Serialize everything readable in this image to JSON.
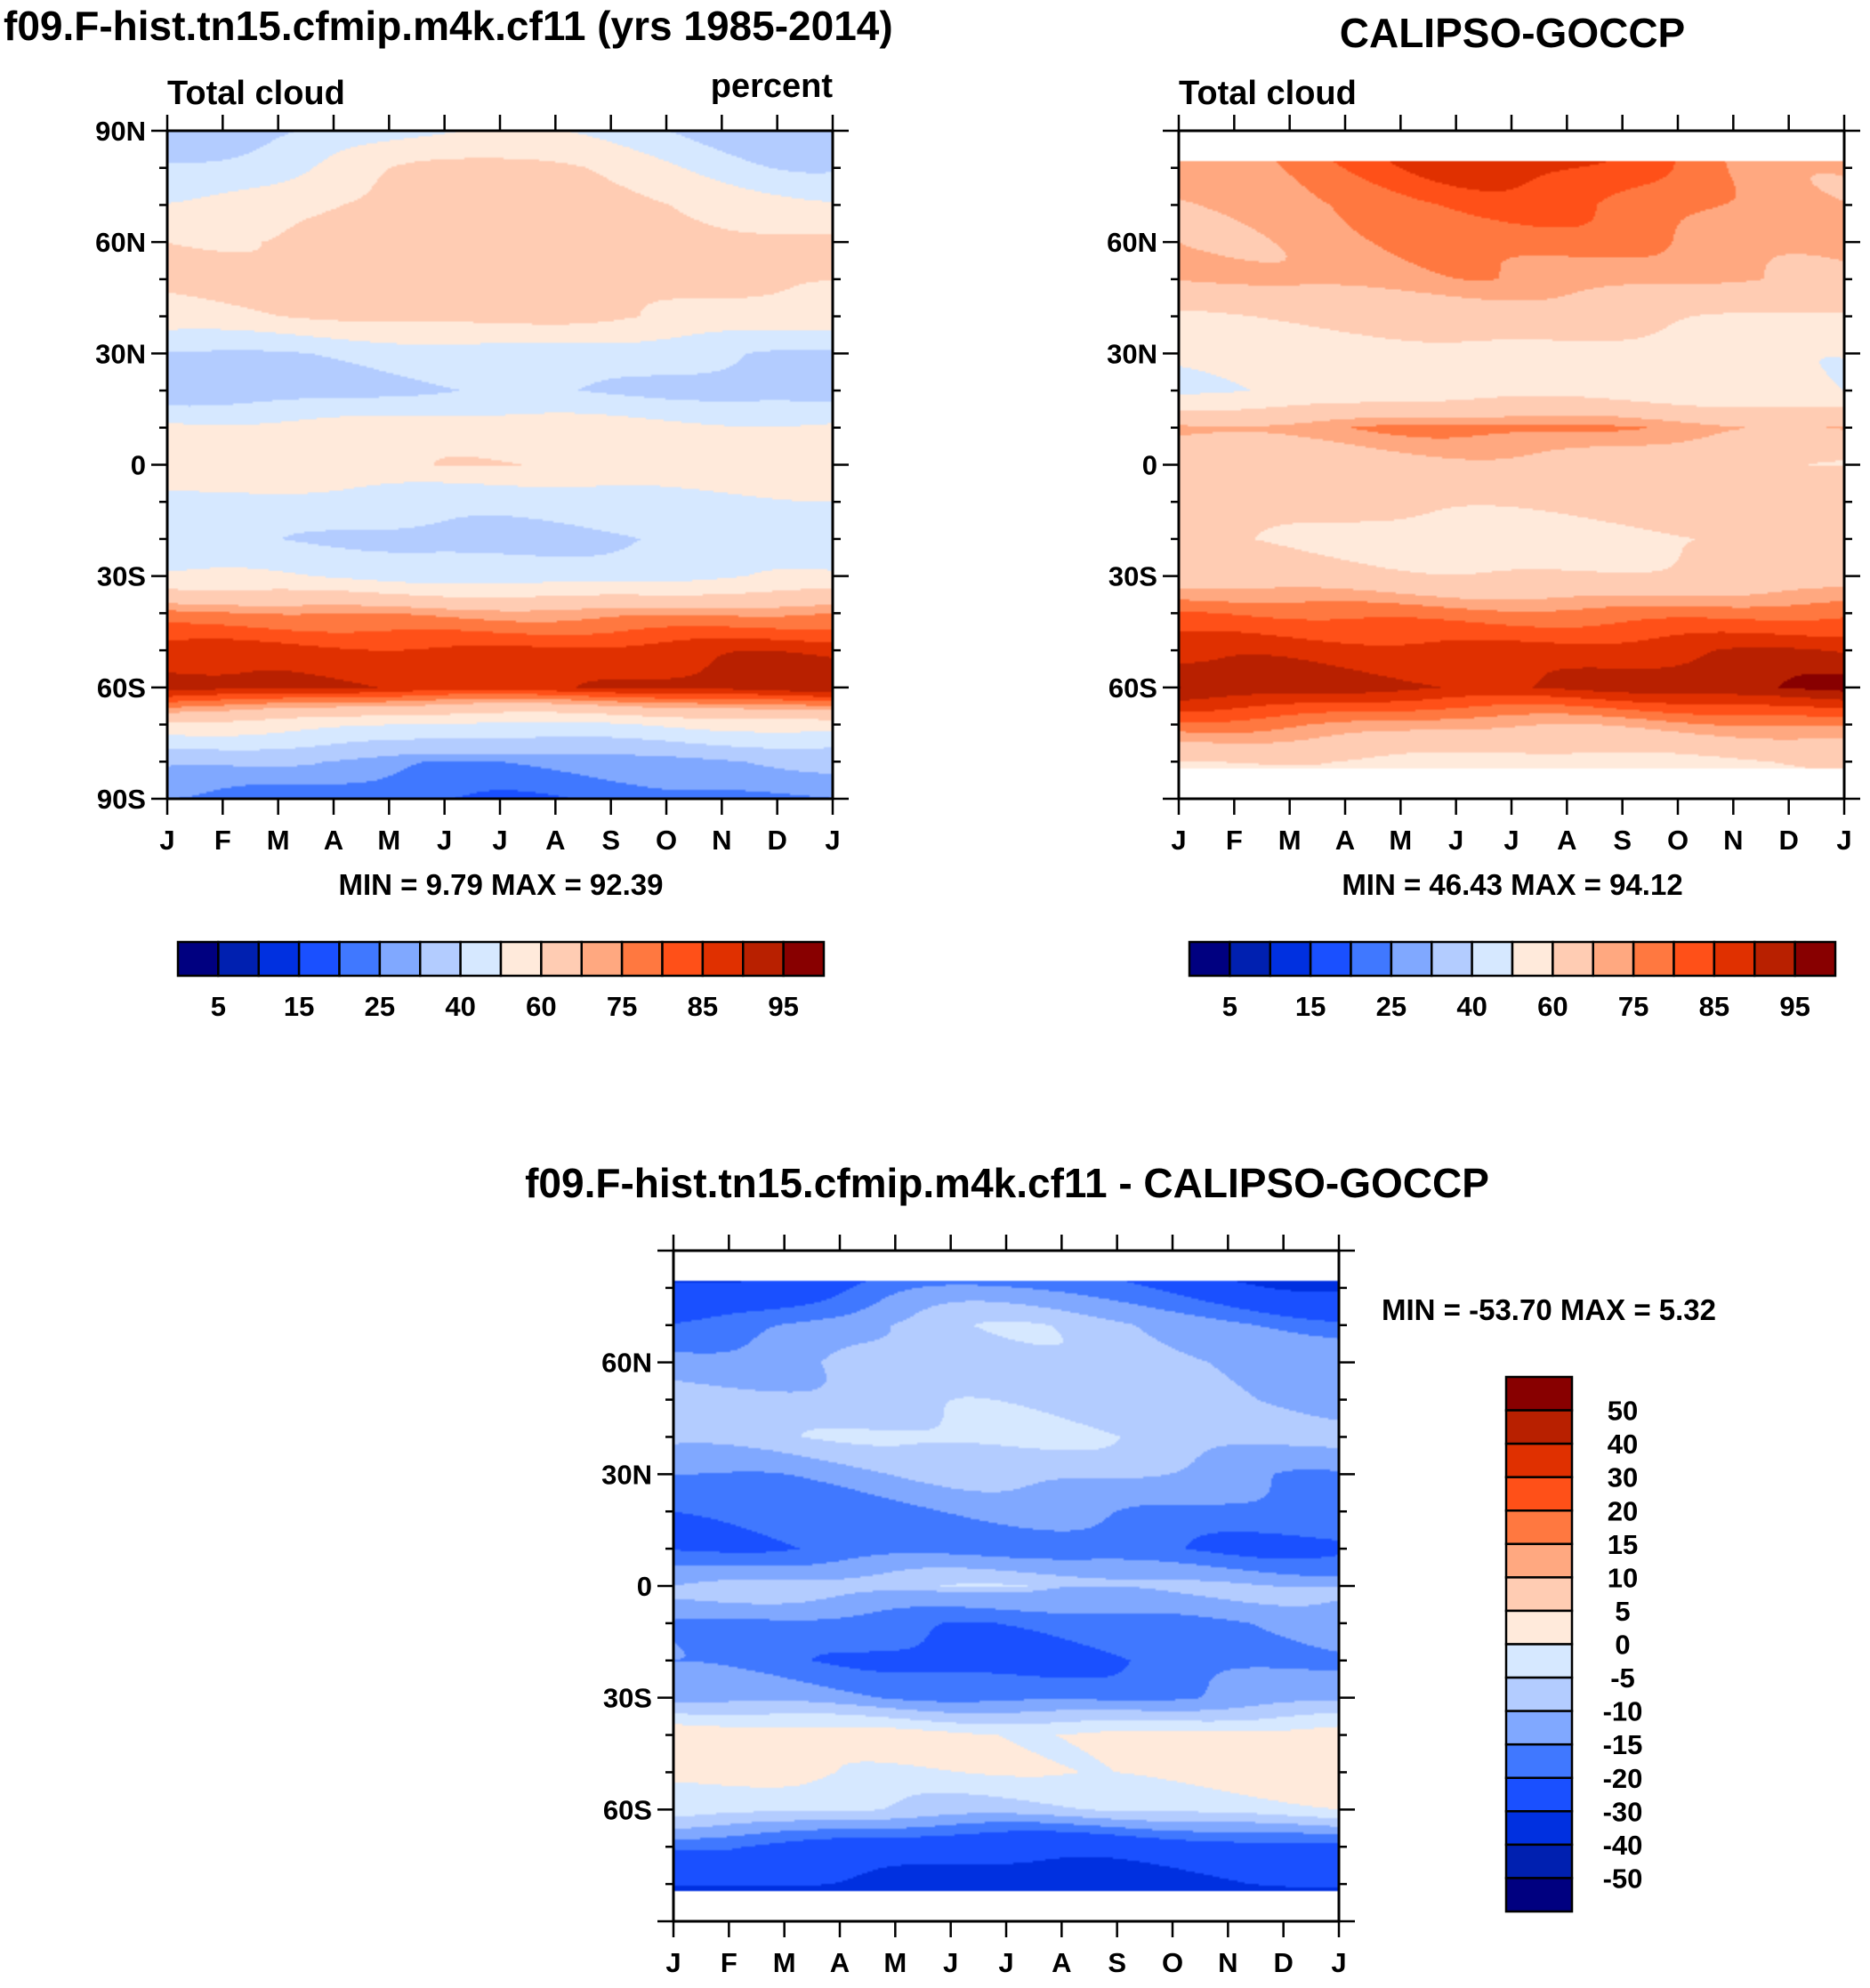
{
  "chart_data": [
    {
      "type": "heatmap",
      "panel": "model",
      "title": "f09.F-hist.tn15.cfmip.m4k.cf11 (yrs 1985-2014)",
      "left_label": "Total cloud",
      "right_label": "percent",
      "min_max_text": "MIN =   9.79 MAX =  92.39",
      "x_ticklabels": [
        "J",
        "F",
        "M",
        "A",
        "M",
        "J",
        "J",
        "A",
        "S",
        "O",
        "N",
        "D",
        "J"
      ],
      "y_ticklabels": [
        "90S",
        "60S",
        "30S",
        "0",
        "30N",
        "60N",
        "90N"
      ],
      "y_tickvalues": [
        -90,
        -60,
        -30,
        0,
        30,
        60,
        90
      ],
      "ylim": [
        -90,
        90
      ],
      "latitudes": [
        -90,
        -80,
        -70,
        -60,
        -50,
        -40,
        -30,
        -20,
        -10,
        0,
        10,
        20,
        30,
        40,
        50,
        60,
        70,
        80,
        90
      ],
      "annual_mean": [
        22,
        28,
        52,
        91,
        87,
        74,
        48,
        40,
        46,
        57,
        54,
        37,
        42,
        60,
        64,
        64,
        60,
        52,
        42
      ],
      "seasonal_amplitude": [
        3,
        4,
        4,
        2,
        2,
        2,
        3,
        3,
        3,
        2,
        3,
        4,
        3,
        3,
        3,
        4,
        8,
        12,
        10
      ],
      "peak_month": 6,
      "levels": [
        5,
        10,
        15,
        20,
        25,
        30,
        40,
        50,
        60,
        70,
        75,
        80,
        85,
        90,
        95
      ],
      "colorbar_labels": [
        "5",
        "15",
        "25",
        "40",
        "60",
        "75",
        "85",
        "95"
      ]
    },
    {
      "type": "heatmap",
      "panel": "observation",
      "title": "CALIPSO-GOCCP",
      "left_label": "Total cloud",
      "min_max_text": "MIN =  46.43 MAX =  94.12",
      "x_ticklabels": [
        "J",
        "F",
        "M",
        "A",
        "M",
        "J",
        "J",
        "A",
        "S",
        "O",
        "N",
        "D",
        "J"
      ],
      "y_ticklabels": [
        "60S",
        "30S",
        "0",
        "30N",
        "60N"
      ],
      "y_tickvalues": [
        -60,
        -30,
        0,
        30,
        60
      ],
      "ylim": [
        -90,
        90
      ],
      "data_lat_range": [
        -82,
        82
      ],
      "latitudes": [
        -82,
        -80,
        -70,
        -60,
        -50,
        -40,
        -30,
        -20,
        -10,
        0,
        10,
        20,
        30,
        40,
        50,
        60,
        70,
        82
      ],
      "annual_mean": [
        57,
        58,
        74,
        93,
        88,
        78,
        63,
        58,
        64,
        64,
        74,
        53,
        54,
        62,
        72,
        74,
        76,
        80
      ],
      "seasonal_amplitude": [
        3,
        3,
        3,
        2,
        2,
        2,
        2,
        3,
        3,
        3,
        4,
        4,
        3,
        3,
        3,
        4,
        5,
        8
      ],
      "peak_month": 6,
      "levels": [
        5,
        10,
        15,
        20,
        25,
        30,
        40,
        50,
        60,
        70,
        75,
        80,
        85,
        90,
        95
      ],
      "colorbar_labels": [
        "5",
        "15",
        "25",
        "40",
        "60",
        "75",
        "85",
        "95"
      ]
    },
    {
      "type": "heatmap",
      "panel": "difference",
      "title": "f09.F-hist.tn15.cfmip.m4k.cf11 - CALIPSO-GOCCP",
      "min_max_text": "MIN = -53.70 MAX =   5.32",
      "x_ticklabels": [
        "J",
        "F",
        "M",
        "A",
        "M",
        "J",
        "J",
        "A",
        "S",
        "O",
        "N",
        "D",
        "J"
      ],
      "y_ticklabels": [
        "60S",
        "30S",
        "0",
        "30N",
        "60N"
      ],
      "y_tickvalues": [
        -60,
        -30,
        0,
        30,
        60
      ],
      "ylim": [
        -90,
        90
      ],
      "data_lat_range": [
        -82,
        82
      ],
      "latitudes": [
        -82,
        -80,
        -70,
        -60,
        -50,
        -40,
        -30,
        -20,
        -10,
        0,
        10,
        20,
        30,
        40,
        50,
        60,
        70,
        82
      ],
      "annual_mean": [
        -36,
        -32,
        -24,
        -4,
        1,
        2,
        -14,
        -19,
        -17,
        -8,
        -19,
        -16,
        -12,
        -6,
        -8,
        -9,
        -12,
        -24
      ],
      "seasonal_amplitude": [
        4,
        4,
        3,
        2,
        2,
        2,
        2,
        3,
        3,
        2,
        3,
        3,
        3,
        2,
        3,
        3,
        6,
        8
      ],
      "peak_month": 6,
      "levels": [
        -50,
        -40,
        -30,
        -20,
        -15,
        -10,
        -5,
        0,
        5,
        10,
        15,
        20,
        30,
        40,
        50
      ],
      "colorbar_labels": [
        "-50",
        "-40",
        "-30",
        "-20",
        "-15",
        "-10",
        "-5",
        "0",
        "5",
        "10",
        "15",
        "20",
        "30",
        "40",
        "50"
      ]
    }
  ],
  "colors": {
    "palette": [
      "#000080",
      "#0020b0",
      "#0030e0",
      "#1a50ff",
      "#4078ff",
      "#80a8ff",
      "#b3ccff",
      "#d6e8ff",
      "#ffeadb",
      "#ffccb3",
      "#ffa880",
      "#ff7840",
      "#ff5018",
      "#e03000",
      "#b82000",
      "#880000"
    ],
    "missing": "#ffffff",
    "axis": "#000000"
  }
}
